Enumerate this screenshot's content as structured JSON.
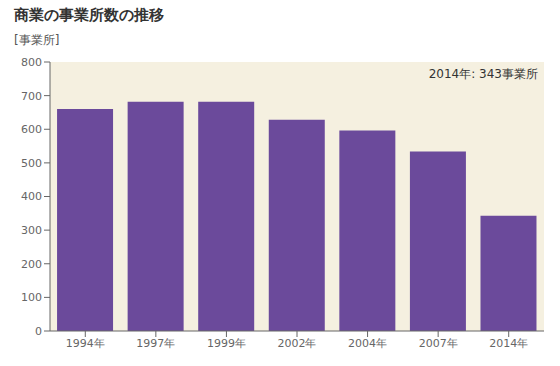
{
  "chart_data": {
    "type": "bar",
    "title": "商業の事業所数の推移",
    "ylabel": "[事業所]",
    "annotation": "2014年: 343事業所",
    "categories": [
      "1994年",
      "1997年",
      "1999年",
      "2002年",
      "2004年",
      "2007年",
      "2014年"
    ],
    "values": [
      660,
      682,
      682,
      628,
      596,
      534,
      343
    ],
    "color": "#6b4a9b",
    "ylim": [
      0,
      800
    ],
    "yticks": [
      0,
      100,
      200,
      300,
      400,
      500,
      600,
      700,
      800
    ],
    "grid": false
  }
}
